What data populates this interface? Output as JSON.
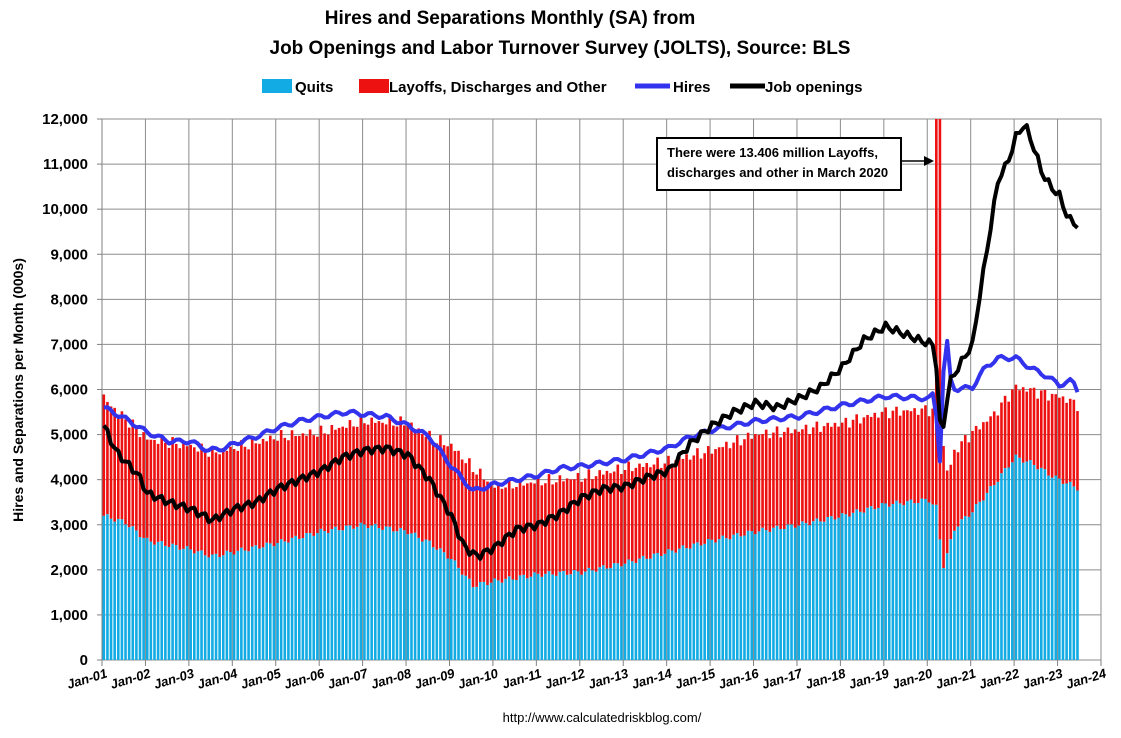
{
  "chart_data": {
    "type": "bar",
    "title_lines": [
      "Hires and Separations Monthly (SA) from",
      "Job Openings and Labor Turnover Survey (JOLTS), Source: BLS"
    ],
    "ylabel": "Hires and Separations per Month (000s)",
    "source": "http://www.calculatedriskblog.com/",
    "ylim": [
      0,
      12000
    ],
    "y_ticks": [
      "0",
      "1,000",
      "2,000",
      "3,000",
      "4,000",
      "5,000",
      "6,000",
      "7,000",
      "8,000",
      "9,000",
      "10,000",
      "11,000",
      "12,000"
    ],
    "x_ticks": [
      "Jan-01",
      "Jan-02",
      "Jan-03",
      "Jan-04",
      "Jan-05",
      "Jan-06",
      "Jan-07",
      "Jan-08",
      "Jan-09",
      "Jan-10",
      "Jan-11",
      "Jan-12",
      "Jan-13",
      "Jan-14",
      "Jan-15",
      "Jan-16",
      "Jan-17",
      "Jan-18",
      "Jan-19",
      "Jan-20",
      "Jan-21",
      "Jan-22",
      "Jan-23",
      "Jan-24"
    ],
    "grid": true,
    "legend_position": "top",
    "annotation": {
      "lines": [
        "There were 13.406 million Layoffs,",
        "discharges and other in March 2020"
      ]
    },
    "monthly_x_start": "2001-01",
    "monthly_x_end": "2023-06",
    "series": [
      {
        "name": "Quits",
        "kind": "stacked-bar",
        "color": "#12ABE4",
        "anchors": [
          [
            2001.0,
            3200
          ],
          [
            2001.5,
            3050
          ],
          [
            2002.0,
            2650
          ],
          [
            2003.0,
            2450
          ],
          [
            2003.5,
            2300
          ],
          [
            2004.0,
            2400
          ],
          [
            2005.0,
            2600
          ],
          [
            2006.0,
            2850
          ],
          [
            2007.0,
            3000
          ],
          [
            2008.0,
            2850
          ],
          [
            2008.5,
            2600
          ],
          [
            2009.0,
            2250
          ],
          [
            2009.5,
            1650
          ],
          [
            2010.0,
            1750
          ],
          [
            2011.0,
            1900
          ],
          [
            2012.0,
            1950
          ],
          [
            2013.0,
            2150
          ],
          [
            2014.0,
            2400
          ],
          [
            2015.0,
            2650
          ],
          [
            2016.0,
            2850
          ],
          [
            2017.0,
            3000
          ],
          [
            2018.0,
            3200
          ],
          [
            2019.0,
            3450
          ],
          [
            2019.5,
            3500
          ],
          [
            2020.0,
            3550
          ],
          [
            2020.2,
            3350
          ],
          [
            2020.3,
            2000
          ],
          [
            2020.4,
            2300
          ],
          [
            2020.6,
            2950
          ],
          [
            2021.0,
            3300
          ],
          [
            2021.5,
            3900
          ],
          [
            2021.9,
            4400
          ],
          [
            2022.0,
            4500
          ],
          [
            2022.4,
            4350
          ],
          [
            2022.8,
            4100
          ],
          [
            2023.0,
            4000
          ],
          [
            2023.46,
            3800
          ]
        ]
      },
      {
        "name": "Layoffs, Discharges and Other",
        "kind": "stacked-bar",
        "color": "#EE1111",
        "anchors": [
          [
            2001.0,
            2600
          ],
          [
            2001.5,
            2300
          ],
          [
            2002.0,
            2250
          ],
          [
            2003.0,
            2300
          ],
          [
            2004.0,
            2300
          ],
          [
            2005.0,
            2350
          ],
          [
            2006.0,
            2200
          ],
          [
            2007.0,
            2300
          ],
          [
            2008.0,
            2400
          ],
          [
            2008.5,
            2350
          ],
          [
            2009.0,
            2500
          ],
          [
            2009.5,
            2600
          ],
          [
            2010.0,
            2100
          ],
          [
            2011.0,
            2050
          ],
          [
            2012.0,
            2100
          ],
          [
            2013.0,
            2100
          ],
          [
            2014.0,
            2000
          ],
          [
            2015.0,
            2000
          ],
          [
            2016.0,
            2150
          ],
          [
            2017.0,
            2100
          ],
          [
            2018.0,
            2050
          ],
          [
            2019.0,
            2050
          ],
          [
            2020.0,
            2000
          ],
          [
            2020.1,
            2100
          ],
          [
            2020.18,
            13406
          ],
          [
            2020.26,
            9500
          ],
          [
            2020.34,
            2000
          ],
          [
            2020.5,
            1700
          ],
          [
            2021.0,
            1750
          ],
          [
            2021.5,
            1550
          ],
          [
            2022.0,
            1550
          ],
          [
            2022.5,
            1650
          ],
          [
            2023.0,
            1850
          ],
          [
            2023.46,
            1850
          ]
        ]
      },
      {
        "name": "Hires",
        "kind": "line",
        "color": "#3333EE",
        "anchors": [
          [
            2001.0,
            5600
          ],
          [
            2001.5,
            5350
          ],
          [
            2002.0,
            5050
          ],
          [
            2002.5,
            4850
          ],
          [
            2003.0,
            4850
          ],
          [
            2003.4,
            4650
          ],
          [
            2003.8,
            4700
          ],
          [
            2004.0,
            4800
          ],
          [
            2004.5,
            4950
          ],
          [
            2005.0,
            5150
          ],
          [
            2005.5,
            5300
          ],
          [
            2006.0,
            5400
          ],
          [
            2006.6,
            5500
          ],
          [
            2007.0,
            5450
          ],
          [
            2007.5,
            5400
          ],
          [
            2008.0,
            5200
          ],
          [
            2008.5,
            4950
          ],
          [
            2009.0,
            4300
          ],
          [
            2009.5,
            3750
          ],
          [
            2010.0,
            3900
          ],
          [
            2011.0,
            4100
          ],
          [
            2011.5,
            4250
          ],
          [
            2012.0,
            4300
          ],
          [
            2013.0,
            4450
          ],
          [
            2014.0,
            4700
          ],
          [
            2014.5,
            4950
          ],
          [
            2015.0,
            5100
          ],
          [
            2016.0,
            5300
          ],
          [
            2017.0,
            5400
          ],
          [
            2018.0,
            5650
          ],
          [
            2019.0,
            5850
          ],
          [
            2020.0,
            5800
          ],
          [
            2020.1,
            5900
          ],
          [
            2020.2,
            5200
          ],
          [
            2020.28,
            4000
          ],
          [
            2020.37,
            8050
          ],
          [
            2020.45,
            6300
          ],
          [
            2020.6,
            6000
          ],
          [
            2021.0,
            6050
          ],
          [
            2021.3,
            6500
          ],
          [
            2021.6,
            6700
          ],
          [
            2022.0,
            6700
          ],
          [
            2022.3,
            6500
          ],
          [
            2022.7,
            6300
          ],
          [
            2023.0,
            6100
          ],
          [
            2023.3,
            6200
          ],
          [
            2023.46,
            5900
          ]
        ]
      },
      {
        "name": "Job openings",
        "kind": "line",
        "color": "#000000",
        "anchors": [
          [
            2001.0,
            5200
          ],
          [
            2001.3,
            4600
          ],
          [
            2001.8,
            4100
          ],
          [
            2002.0,
            3700
          ],
          [
            2002.5,
            3500
          ],
          [
            2003.0,
            3350
          ],
          [
            2003.5,
            3100
          ],
          [
            2004.0,
            3350
          ],
          [
            2004.5,
            3500
          ],
          [
            2005.0,
            3800
          ],
          [
            2005.5,
            4000
          ],
          [
            2006.0,
            4200
          ],
          [
            2006.5,
            4500
          ],
          [
            2007.0,
            4650
          ],
          [
            2007.5,
            4700
          ],
          [
            2008.0,
            4550
          ],
          [
            2008.5,
            4000
          ],
          [
            2009.0,
            3200
          ],
          [
            2009.3,
            2500
          ],
          [
            2009.6,
            2300
          ],
          [
            2010.0,
            2500
          ],
          [
            2010.5,
            2900
          ],
          [
            2011.0,
            3000
          ],
          [
            2011.5,
            3250
          ],
          [
            2012.0,
            3600
          ],
          [
            2012.5,
            3800
          ],
          [
            2013.0,
            3850
          ],
          [
            2013.5,
            4050
          ],
          [
            2014.0,
            4200
          ],
          [
            2014.5,
            4800
          ],
          [
            2015.0,
            5200
          ],
          [
            2015.5,
            5500
          ],
          [
            2016.0,
            5700
          ],
          [
            2016.5,
            5600
          ],
          [
            2017.0,
            5800
          ],
          [
            2017.5,
            6050
          ],
          [
            2018.0,
            6500
          ],
          [
            2018.5,
            7100
          ],
          [
            2019.0,
            7400
          ],
          [
            2019.5,
            7200
          ],
          [
            2019.9,
            7050
          ],
          [
            2020.1,
            7000
          ],
          [
            2020.2,
            6300
          ],
          [
            2020.28,
            4600
          ],
          [
            2020.37,
            5600
          ],
          [
            2020.5,
            6200
          ],
          [
            2020.8,
            6700
          ],
          [
            2021.0,
            7000
          ],
          [
            2021.2,
            8300
          ],
          [
            2021.4,
            9500
          ],
          [
            2021.6,
            10700
          ],
          [
            2021.8,
            11000
          ],
          [
            2022.0,
            11600
          ],
          [
            2022.2,
            11900
          ],
          [
            2022.4,
            11400
          ],
          [
            2022.6,
            10800
          ],
          [
            2022.8,
            10500
          ],
          [
            2023.0,
            10300
          ],
          [
            2023.2,
            9800
          ],
          [
            2023.46,
            9600
          ]
        ]
      }
    ]
  }
}
